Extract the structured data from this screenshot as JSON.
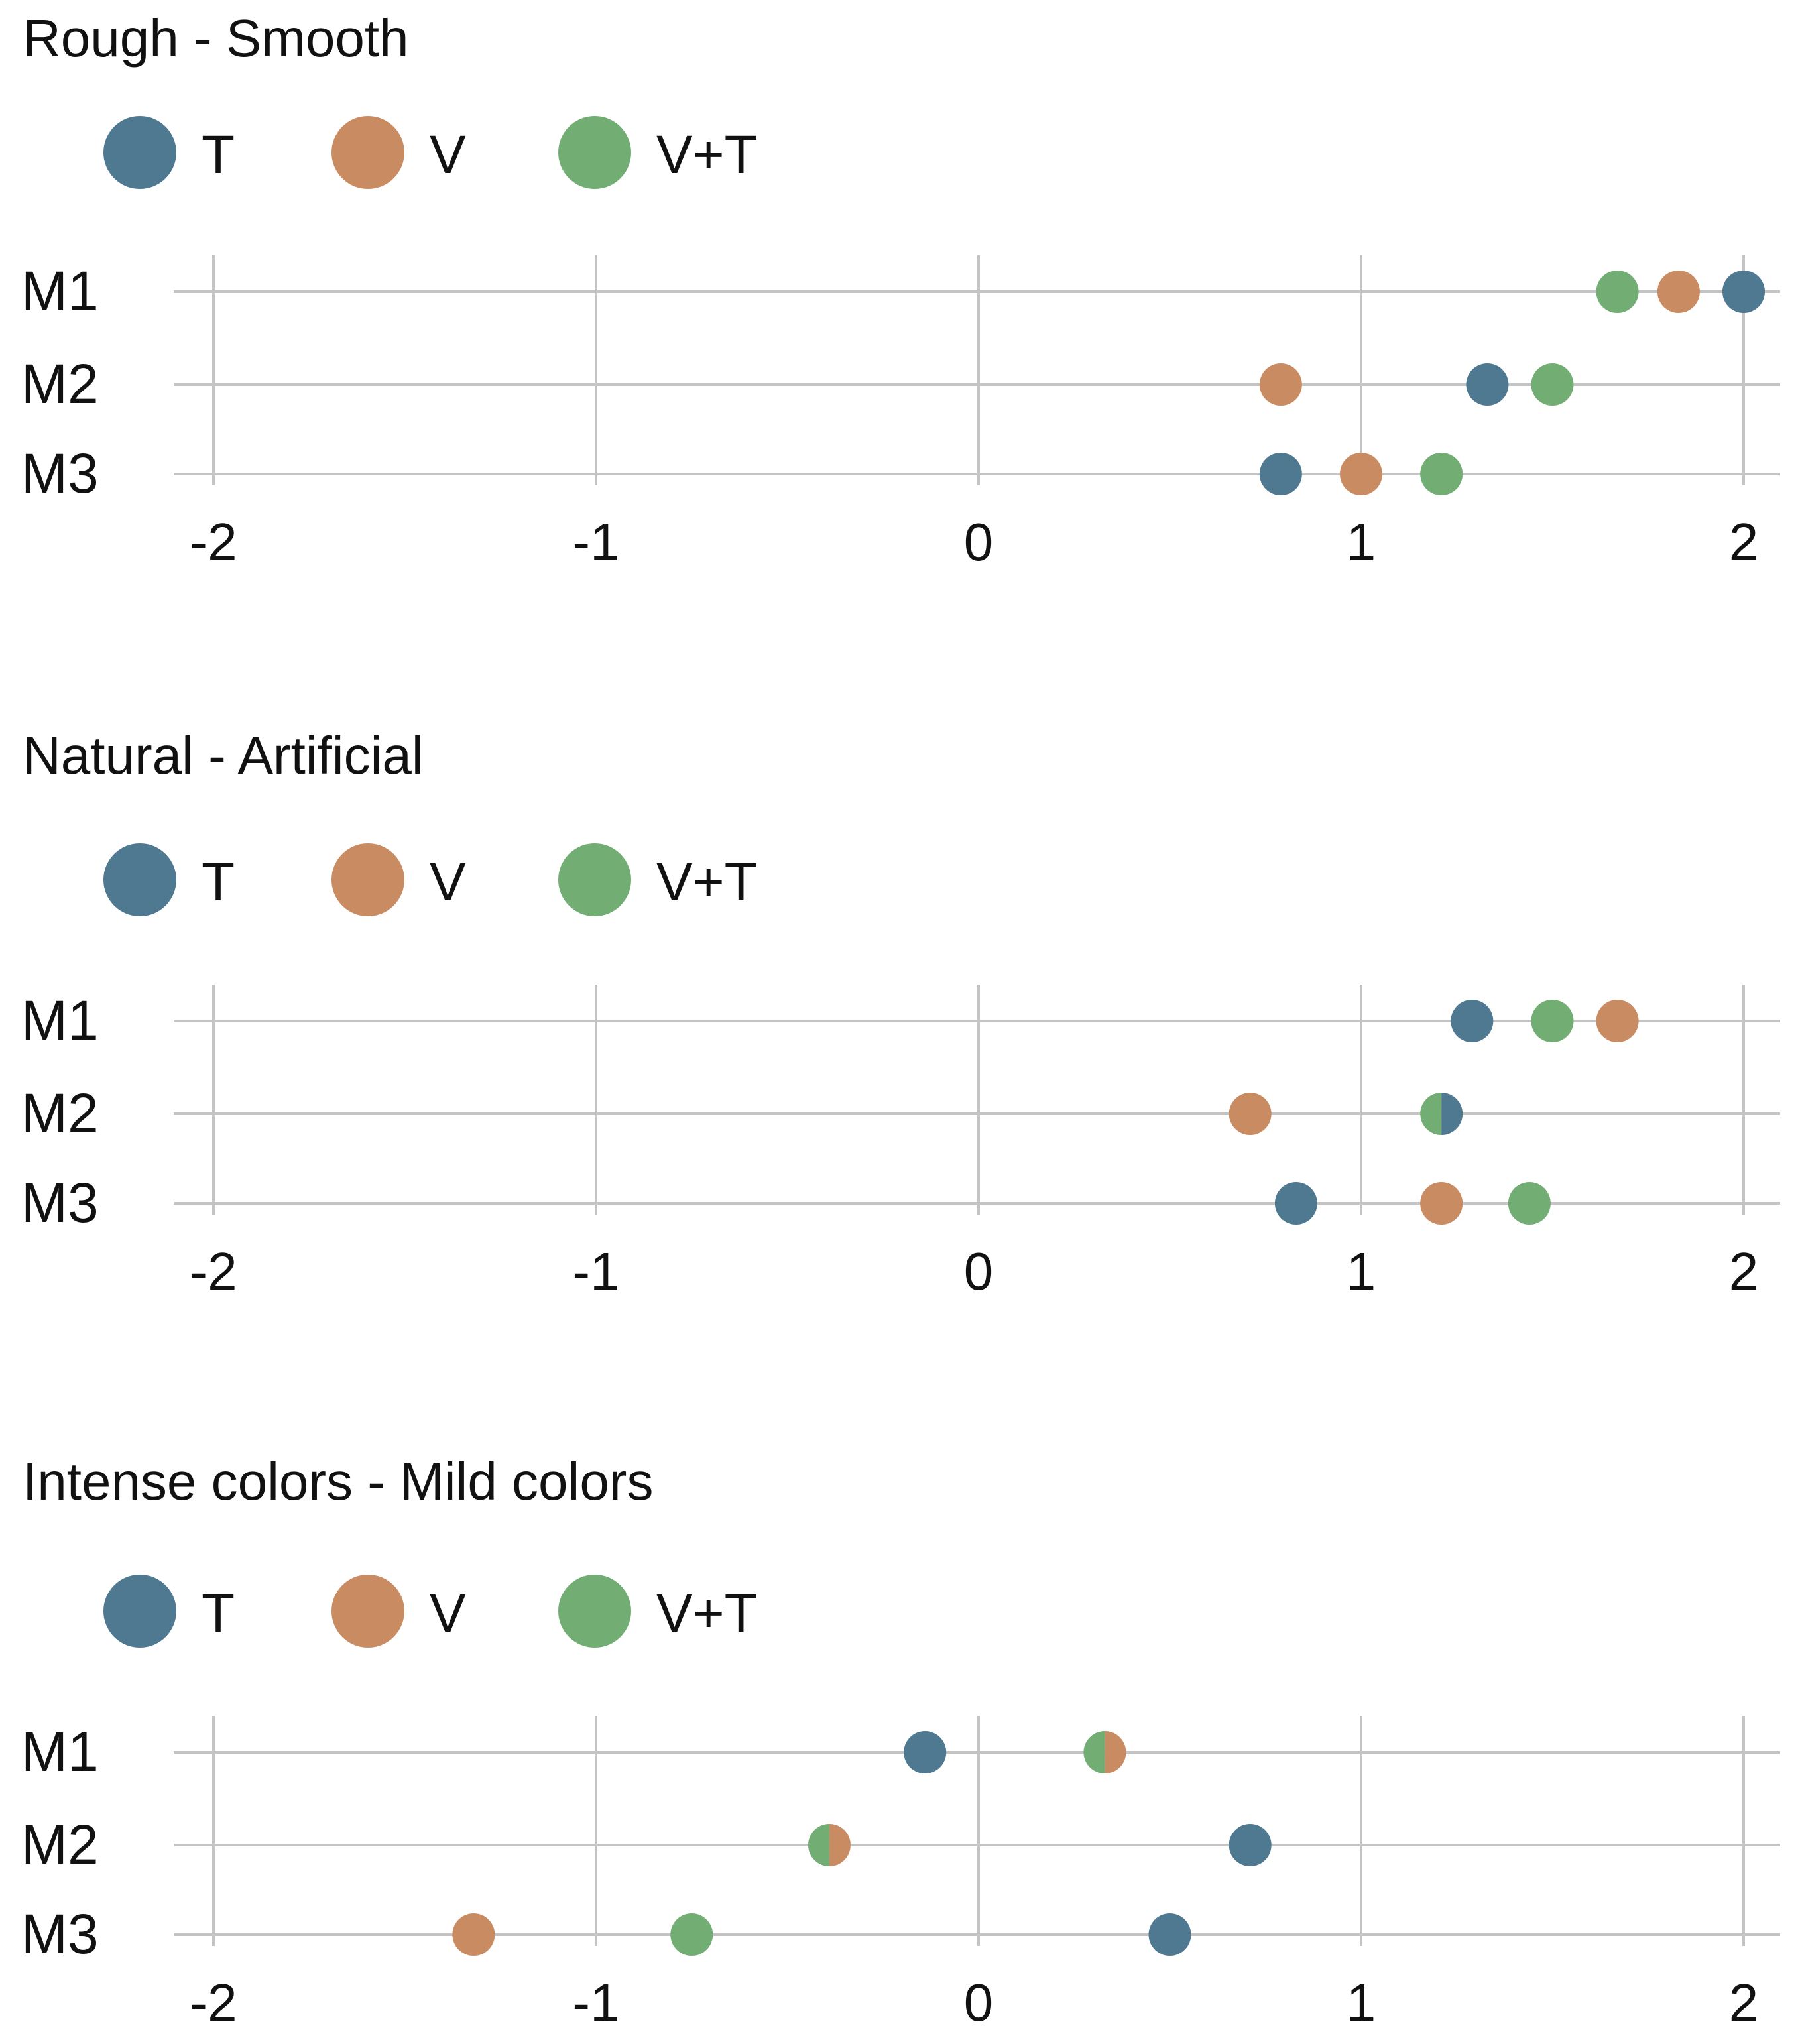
{
  "colors": {
    "T": "#4f7891",
    "V": "#c98b62",
    "V+T": "#72ad74",
    "grid": "#c4c4c4"
  },
  "chart_data": [
    {
      "type": "scatter",
      "title": "Rough - Smooth",
      "categories": [
        "M1",
        "M2",
        "M3"
      ],
      "xlim": [
        -2.1,
        2.1
      ],
      "xticks": [
        "-2",
        "-1",
        "0",
        "1",
        "2"
      ],
      "legend_position": "top-left",
      "grid": true,
      "series": [
        {
          "name": "T",
          "values": [
            2.0,
            1.33,
            0.79
          ]
        },
        {
          "name": "V",
          "values": [
            1.83,
            0.79,
            1.0
          ]
        },
        {
          "name": "V+T",
          "values": [
            1.67,
            1.5,
            1.21
          ]
        }
      ]
    },
    {
      "type": "scatter",
      "title": "Natural - Artificial",
      "categories": [
        "M1",
        "M2",
        "M3"
      ],
      "xlim": [
        -2.1,
        2.1
      ],
      "xticks": [
        "-2",
        "-1",
        "0",
        "1",
        "2"
      ],
      "legend_position": "top-left",
      "grid": true,
      "series": [
        {
          "name": "T",
          "values": [
            1.29,
            1.21,
            0.83
          ]
        },
        {
          "name": "V",
          "values": [
            1.67,
            0.71,
            1.21
          ]
        },
        {
          "name": "V+T",
          "values": [
            1.5,
            1.21,
            1.44
          ]
        }
      ]
    },
    {
      "type": "scatter",
      "title": "Intense colors - Mild colors",
      "categories": [
        "M1",
        "M2",
        "M3"
      ],
      "xlim": [
        -2.1,
        2.1
      ],
      "xticks": [
        "-2",
        "-1",
        "0",
        "1",
        "2"
      ],
      "legend_position": "top-left",
      "grid": true,
      "series": [
        {
          "name": "T",
          "values": [
            -0.14,
            0.71,
            0.5
          ]
        },
        {
          "name": "V",
          "values": [
            0.33,
            -0.39,
            -1.32
          ]
        },
        {
          "name": "V+T",
          "values": [
            0.33,
            -0.39,
            -0.75
          ]
        }
      ]
    }
  ]
}
